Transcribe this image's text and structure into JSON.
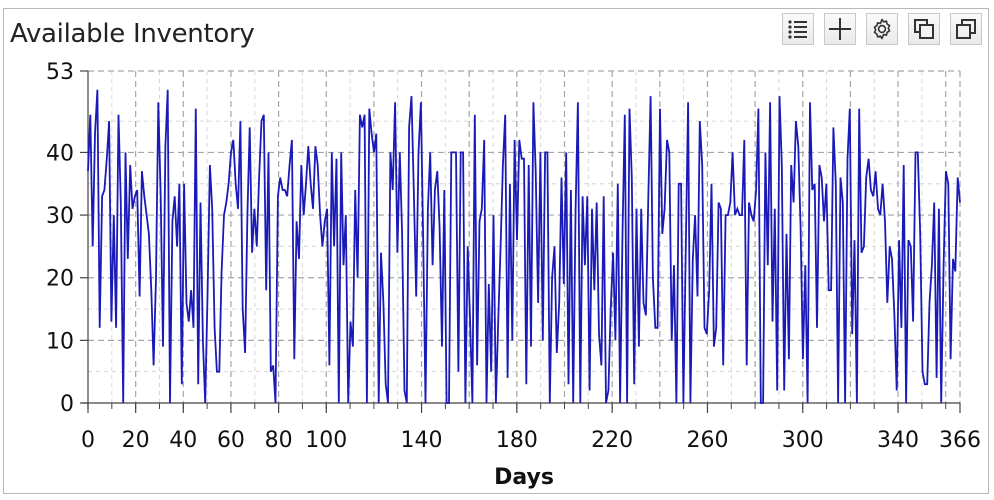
{
  "window": {
    "title": "Available Inventory"
  },
  "toolbar": {
    "buttons": [
      {
        "name": "legend-button",
        "icon": "list-icon"
      },
      {
        "name": "zoom-button",
        "icon": "plus-icon"
      },
      {
        "name": "settings-button",
        "icon": "gear-icon"
      },
      {
        "name": "copy-button",
        "icon": "copy-icon"
      },
      {
        "name": "expand-button",
        "icon": "expand-icon"
      }
    ]
  },
  "chart_data": {
    "type": "line",
    "title": "Available Inventory",
    "xlabel": "Days",
    "ylabel": "",
    "xlim": [
      0,
      366
    ],
    "ylim": [
      0,
      53
    ],
    "x_ticks": [
      0,
      20,
      40,
      60,
      80,
      100,
      140,
      180,
      220,
      260,
      300,
      340,
      366
    ],
    "y_ticks": [
      0,
      10,
      20,
      30,
      40,
      53
    ],
    "grid": true,
    "line_color": "#1a1ab8",
    "series": [
      {
        "values": [
          37,
          46,
          25,
          43,
          50,
          12,
          33,
          34,
          39,
          45,
          13,
          30,
          12,
          46,
          32,
          0,
          40,
          23,
          38,
          31,
          33,
          34,
          17,
          37,
          33,
          30,
          27,
          18,
          6,
          20,
          48,
          33,
          9,
          41,
          50,
          0,
          29,
          33,
          25,
          35,
          3,
          35,
          16,
          13,
          18,
          12,
          47,
          3,
          32,
          10,
          0,
          17,
          38,
          31,
          12,
          5,
          5,
          21,
          30,
          32,
          35,
          40,
          42,
          35,
          31,
          45,
          15,
          8,
          30,
          44,
          24,
          31,
          25,
          36,
          45,
          46,
          18,
          40,
          5,
          6,
          0,
          33,
          36,
          34,
          34,
          33,
          38,
          42,
          7,
          29,
          23,
          38,
          30,
          35,
          41,
          35,
          31,
          41,
          38,
          30,
          25,
          29,
          31,
          6,
          40,
          25,
          39,
          0,
          40,
          22,
          30,
          0,
          13,
          9,
          34,
          20,
          46,
          44,
          46,
          0,
          47,
          43,
          40,
          43,
          0,
          24,
          16,
          3,
          0,
          40,
          34,
          48,
          24,
          40,
          27,
          2,
          0,
          44,
          49,
          34,
          17,
          40,
          48,
          26,
          0,
          31,
          40,
          22,
          34,
          37,
          28,
          9,
          34,
          0,
          0,
          40,
          40,
          40,
          5,
          40,
          40,
          0,
          25,
          13,
          0,
          46,
          6,
          29,
          31,
          42,
          0,
          19,
          5,
          30,
          0,
          13,
          25,
          38,
          46,
          4,
          35,
          10,
          42,
          26,
          42,
          39,
          39,
          3,
          38,
          9,
          48,
          37,
          16,
          40,
          10,
          40,
          40,
          0,
          20,
          25,
          8,
          16,
          36,
          19,
          40,
          3,
          34,
          0,
          31,
          48,
          0,
          33,
          22,
          33,
          2,
          31,
          18,
          32,
          11,
          6,
          33,
          0,
          2,
          15,
          24,
          10,
          35,
          0,
          27,
          46,
          0,
          47,
          36,
          3,
          31,
          9,
          31,
          16,
          14,
          32,
          49,
          20,
          12,
          12,
          47,
          27,
          31,
          42,
          40,
          10,
          22,
          0,
          35,
          35,
          0,
          24,
          48,
          0,
          23,
          30,
          17,
          45,
          38,
          12,
          11,
          18,
          35,
          9,
          12,
          32,
          31,
          6,
          30,
          30,
          32,
          40,
          30,
          31,
          30,
          30,
          42,
          6,
          32,
          30,
          29,
          34,
          47,
          0,
          0,
          40,
          22,
          48,
          13,
          31,
          2,
          49,
          38,
          2,
          27,
          7,
          38,
          32,
          45,
          41,
          28,
          7,
          22,
          0,
          48,
          34,
          35,
          12,
          38,
          36,
          29,
          35,
          18,
          18,
          44,
          35,
          0,
          36,
          32,
          0,
          39,
          47,
          11,
          26,
          0,
          47,
          24,
          25,
          36,
          39,
          34,
          33,
          37,
          31,
          30,
          35,
          29,
          16,
          25,
          23,
          14,
          2,
          26,
          12,
          38,
          0,
          26,
          25,
          13,
          40,
          40,
          27,
          5,
          3,
          3,
          16,
          22,
          32,
          4,
          31,
          0,
          22,
          37,
          35,
          7,
          23,
          21,
          36,
          32
        ]
      }
    ]
  }
}
